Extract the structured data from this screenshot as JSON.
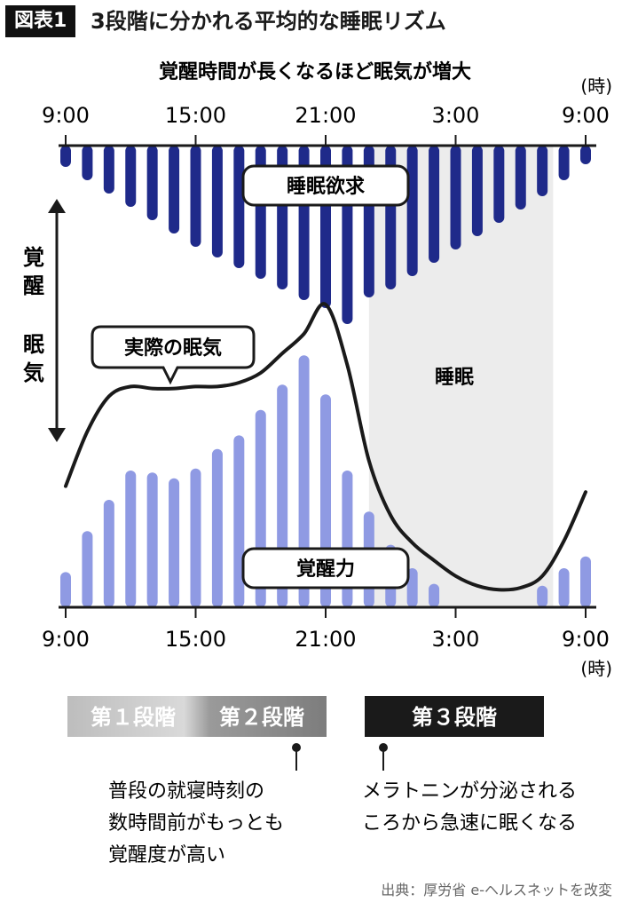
{
  "figure_tag": "図表1",
  "figure_title": "3段階に分かれる平均的な睡眠リズム",
  "source": "出典：厚労省 e-ヘルスネットを改変",
  "stages": {
    "stage1": "第１段階",
    "stage2": "第２段階",
    "stage3": "第３段階"
  },
  "notes": {
    "stage2_note": [
      "普段の就寝時刻の",
      "数時間前がもっとも",
      "覚醒度が高い"
    ],
    "stage3_note": [
      "メラトニンが分泌される",
      "ころから急速に眠くなる"
    ]
  },
  "arrow_labels": {
    "wake": "覚醒",
    "sleepiness": "眠気"
  },
  "colors": {
    "sleep_drive": "#1f2a8a",
    "wake_force": "#8f9ae3",
    "curve": "#1a1a1a",
    "sleep_band": "#ececec",
    "stage12_bg": "#8a8a8a",
    "stage3_bg": "#1a1a1a"
  },
  "chart_data": {
    "type": "bar",
    "title": "覚醒時間が長くなるほど眠気が増大",
    "x_ticks": [
      "9:00",
      "15:00",
      "21:00",
      "3:00",
      "9:00"
    ],
    "x_unit": "(時)",
    "x_hours_range": [
      0,
      24
    ],
    "series": [
      {
        "name": "睡眠欲求",
        "hours": [
          0,
          1,
          2,
          3,
          4,
          5,
          6,
          7,
          8,
          9,
          10,
          11,
          12,
          13,
          14,
          15,
          16,
          17,
          18,
          19,
          20,
          21,
          22,
          23,
          24
        ],
        "values": [
          1.6,
          2.6,
          3.6,
          4.6,
          5.6,
          6.6,
          7.6,
          8.4,
          9.2,
          10.0,
          10.8,
          11.6,
          12.2,
          13.4,
          11.4,
          10.8,
          9.8,
          8.8,
          7.8,
          6.8,
          5.8,
          4.8,
          3.8,
          2.6,
          1.4
        ]
      },
      {
        "name": "覚醒力",
        "hours": [
          0,
          1,
          2,
          3,
          4,
          5,
          6,
          7,
          8,
          9,
          10,
          11,
          12,
          13,
          14,
          15,
          16,
          17,
          18,
          19,
          20,
          21,
          22,
          23,
          24
        ],
        "values": [
          1.8,
          3.9,
          5.5,
          7.0,
          6.9,
          6.6,
          7.1,
          8.1,
          8.8,
          10.1,
          11.4,
          12.9,
          10.9,
          7.0,
          4.9,
          3.2,
          2.0,
          1.2,
          0,
          0,
          0,
          0,
          1.1,
          2.0,
          2.6
        ]
      }
    ],
    "curve": {
      "name": "実際の眠気",
      "hours": [
        0,
        1,
        2,
        3,
        4,
        5,
        6,
        7,
        8,
        9,
        10,
        11,
        12,
        13,
        14,
        15,
        16,
        17,
        18,
        19,
        20,
        21,
        22,
        23,
        24
      ],
      "values": [
        6.2,
        9.0,
        10.8,
        11.3,
        11.2,
        11.2,
        11.3,
        11.3,
        11.5,
        12.0,
        13.0,
        14.0,
        15.5,
        12.4,
        7.5,
        4.7,
        3.3,
        2.4,
        1.6,
        1.1,
        0.9,
        1.0,
        1.6,
        3.4,
        5.9
      ]
    },
    "sleep_period": {
      "start_hour": 14,
      "end_hour": 22.5,
      "label": "睡眠"
    },
    "annotations": [
      "睡眠欲求",
      "覚醒力",
      "実際の眠気",
      "睡眠"
    ]
  }
}
